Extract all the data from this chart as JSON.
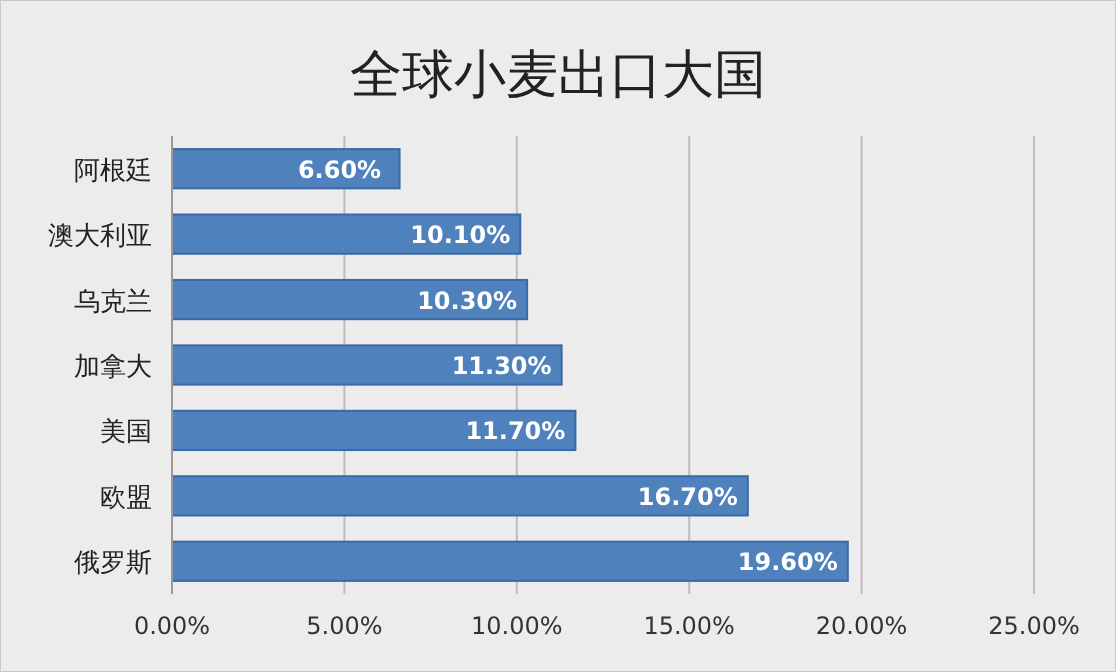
{
  "chart_data": {
    "type": "bar",
    "orientation": "horizontal",
    "title": "全球小麦出口大国",
    "categories": [
      "阿根廷",
      "澳大利亚",
      "乌克兰",
      "加拿大",
      "美国",
      "欧盟",
      "俄罗斯"
    ],
    "values": [
      6.6,
      10.1,
      10.3,
      11.3,
      11.7,
      16.7,
      19.6
    ],
    "value_labels": [
      "6.60%",
      "10.10%",
      "10.30%",
      "11.30%",
      "11.70%",
      "16.70%",
      "19.60%"
    ],
    "color": "#4f81bd",
    "xlim": [
      0,
      25
    ],
    "xticks": [
      {
        "value": 0,
        "label": "0.00%"
      },
      {
        "value": 5,
        "label": "5.00%"
      },
      {
        "value": 10,
        "label": "10.00%"
      },
      {
        "value": 15,
        "label": "15.00%"
      },
      {
        "value": 20,
        "label": "20.00%"
      },
      {
        "value": 25,
        "label": "25.00%"
      }
    ],
    "grid": "x"
  }
}
